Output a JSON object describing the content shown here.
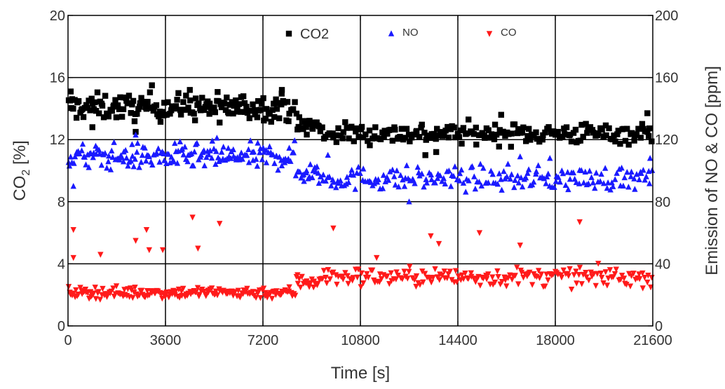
{
  "chart_data": {
    "type": "scatter",
    "xlabel": "Time [s]",
    "ylabel_left": "CO",
    "ylabel_left_sub": "2",
    "ylabel_left_unit": " [%]",
    "ylabel_right": "Emission of NO & CO [ppm]",
    "xlim": [
      0,
      21600
    ],
    "ylim_left": [
      0,
      20
    ],
    "ylim_right": [
      0,
      200
    ],
    "x_ticks": [
      0,
      3600,
      7200,
      10800,
      14400,
      18000,
      21600
    ],
    "y_left_ticks": [
      0,
      4,
      8,
      12,
      16,
      20
    ],
    "y_right_ticks": [
      0,
      40,
      80,
      120,
      160,
      200
    ],
    "grid": true,
    "legend_placement": "top",
    "series": [
      {
        "name": "CO2",
        "axis": "left",
        "marker": "square",
        "color": "#000000",
        "segments": [
          {
            "x": [
              0,
              8400
            ],
            "base": 14.1,
            "spread": 0.55,
            "count": 180
          },
          {
            "x": [
              8400,
              9300
            ],
            "base": 12.9,
            "spread": 0.5,
            "count": 20
          },
          {
            "x": [
              9300,
              21600
            ],
            "base": 12.4,
            "spread": 0.45,
            "count": 200
          }
        ],
        "outliers": [
          [
            100,
            15.1
          ],
          [
            900,
            12.8
          ],
          [
            2500,
            12.5
          ],
          [
            3100,
            15.5
          ],
          [
            4500,
            15.2
          ],
          [
            5600,
            13.1
          ],
          [
            7900,
            15.2
          ],
          [
            13200,
            11.0
          ],
          [
            13600,
            11.2
          ],
          [
            16000,
            13.6
          ],
          [
            21400,
            13.7
          ]
        ]
      },
      {
        "name": "NO",
        "axis": "left",
        "marker": "triangle-up",
        "color": "#1a1aff",
        "segments": [
          {
            "x": [
              0,
              8400
            ],
            "base": 10.9,
            "spread": 0.55,
            "count": 180
          },
          {
            "x": [
              8400,
              9300
            ],
            "base": 9.9,
            "spread": 0.5,
            "count": 20
          },
          {
            "x": [
              9300,
              21600
            ],
            "base": 9.5,
            "spread": 0.5,
            "count": 200
          }
        ],
        "outliers": [
          [
            200,
            9.0
          ],
          [
            2500,
            12.3
          ],
          [
            5500,
            12.1
          ],
          [
            9600,
            11.0
          ],
          [
            12600,
            8.0
          ],
          [
            16700,
            10.9
          ],
          [
            17800,
            10.8
          ],
          [
            21500,
            10.8
          ]
        ]
      },
      {
        "name": "CO",
        "axis": "right",
        "marker": "triangle-down",
        "color": "#ff1a1a",
        "segments": [
          {
            "x": [
              0,
              8400
            ],
            "base": 21.5,
            "spread": 2.5,
            "count": 180
          },
          {
            "x": [
              8400,
              9300
            ],
            "base": 29.0,
            "spread": 4.0,
            "count": 20
          },
          {
            "x": [
              9300,
              21600
            ],
            "base": 31.5,
            "spread": 4.0,
            "count": 200
          }
        ],
        "outliers": [
          [
            200,
            62
          ],
          [
            200,
            44
          ],
          [
            1200,
            46
          ],
          [
            2500,
            55
          ],
          [
            2900,
            62
          ],
          [
            3000,
            49
          ],
          [
            3500,
            49
          ],
          [
            4600,
            70
          ],
          [
            4800,
            50
          ],
          [
            5600,
            66
          ],
          [
            9800,
            63
          ],
          [
            11400,
            44
          ],
          [
            13400,
            58
          ],
          [
            13700,
            53
          ],
          [
            15200,
            60
          ],
          [
            16700,
            52
          ],
          [
            18900,
            67
          ]
        ]
      }
    ]
  }
}
